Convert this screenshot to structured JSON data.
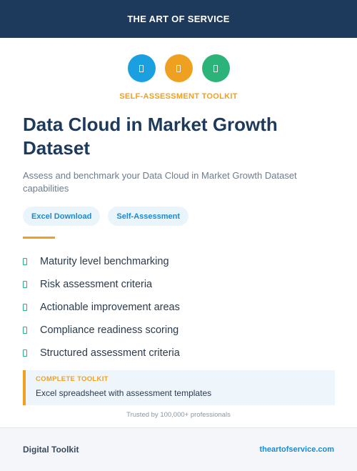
{
  "header": {
    "title": "THE ART OF SERVICE"
  },
  "icons": [
    {
      "name": "document-icon",
      "color": "#1a9fe0"
    },
    {
      "name": "document-icon",
      "color": "#f0a020"
    },
    {
      "name": "document-icon",
      "color": "#2bb37a"
    }
  ],
  "kicker": "SELF-ASSESSMENT TOOLKIT",
  "title": "Data Cloud in Market Growth Dataset",
  "subtitle": "Assess and benchmark your Data Cloud in Market Growth Dataset capabilities",
  "tags": [
    "Excel Download",
    "Self-Assessment"
  ],
  "features": [
    "Maturity level benchmarking",
    "Risk assessment criteria",
    "Actionable improvement areas",
    "Compliance readiness scoring",
    "Structured assessment criteria"
  ],
  "callout": {
    "kicker": "COMPLETE TOOLKIT",
    "text": "Excel spreadsheet with assessment templates"
  },
  "trusted": "Trusted by 100,000+ professionals",
  "footer": {
    "left": "Digital Toolkit",
    "right": "theartofservice.com"
  }
}
